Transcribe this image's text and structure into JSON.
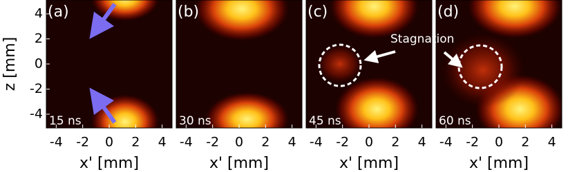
{
  "chart_data": [
    {
      "type": "image",
      "panel_label": "(a)",
      "time_label": "15 ns",
      "xlabel": "x' [mm]",
      "ylabel": "z [mm]",
      "xlim": [
        -4.75,
        4.75
      ],
      "xticks": [
        -4,
        -2,
        0,
        2,
        4
      ],
      "ylim": [
        -5.1,
        5.1
      ],
      "yticks": [
        -4,
        -2,
        0,
        2,
        4
      ]
    },
    {
      "type": "image",
      "panel_label": "(b)",
      "time_label": "30 ns",
      "xlabel": "x' [mm]",
      "xlim": [
        -4.75,
        4.75
      ],
      "xticks": [
        -4,
        -2,
        0,
        2,
        4
      ],
      "ylim": [
        -5.1,
        5.1
      ]
    },
    {
      "type": "image",
      "panel_label": "(c)",
      "time_label": "45 ns",
      "xlabel": "x' [mm]",
      "annotation": "Stagnation",
      "xlim": [
        -4.75,
        4.75
      ],
      "xticks": [
        -4,
        -2,
        0,
        2,
        4
      ],
      "ylim": [
        -5.1,
        5.1
      ]
    },
    {
      "type": "image",
      "panel_label": "(d)",
      "time_label": "60 ns",
      "xlabel": "x' [mm]",
      "xlim": [
        -4.75,
        4.75
      ],
      "xticks": [
        -4,
        -2,
        0,
        2,
        4
      ],
      "ylim": [
        -5.1,
        5.1
      ]
    }
  ]
}
